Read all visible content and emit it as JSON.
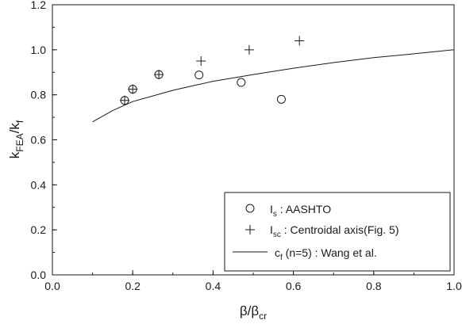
{
  "chart_data": {
    "type": "scatter",
    "x_axis": {
      "label_main": "β/β",
      "label_sub": "cr",
      "range": [
        0.0,
        1.0
      ],
      "ticks": [
        0.0,
        0.2,
        0.4,
        0.6,
        0.8,
        1.0
      ],
      "tick_labels": [
        "0.0",
        "0.2",
        "0.4",
        "0.6",
        "0.8",
        "1.0"
      ],
      "minor_step": 0.1
    },
    "y_axis": {
      "label_k1": "k",
      "label_sub1": "FEA",
      "label_slash_k": "/k",
      "label_sub2": "f",
      "range": [
        0.0,
        1.2
      ],
      "ticks": [
        0.0,
        0.2,
        0.4,
        0.6,
        0.8,
        1.0,
        1.2
      ],
      "tick_labels": [
        "0.0",
        "0.2",
        "0.4",
        "0.6",
        "0.8",
        "1.0",
        "1.2"
      ],
      "minor_step": 0.1
    },
    "grid": false,
    "legend_position": "bottom-right",
    "series": [
      {
        "name_main": "I",
        "name_sub": "s",
        "name_rest": " : AASHTO",
        "marker": "circle",
        "points": [
          {
            "x": 0.18,
            "y": 0.775
          },
          {
            "x": 0.2,
            "y": 0.825
          },
          {
            "x": 0.265,
            "y": 0.89
          },
          {
            "x": 0.365,
            "y": 0.888
          },
          {
            "x": 0.47,
            "y": 0.855
          },
          {
            "x": 0.57,
            "y": 0.78
          }
        ]
      },
      {
        "name_main": "I",
        "name_sub": "sc",
        "name_rest": " : Centroidal axis(Fig. 5)",
        "marker": "plus",
        "points": [
          {
            "x": 0.18,
            "y": 0.775
          },
          {
            "x": 0.2,
            "y": 0.825
          },
          {
            "x": 0.265,
            "y": 0.89
          },
          {
            "x": 0.37,
            "y": 0.95
          },
          {
            "x": 0.49,
            "y": 1.0
          },
          {
            "x": 0.615,
            "y": 1.04
          }
        ]
      },
      {
        "name_main": "c",
        "name_sub": "f",
        "name_rest": " (n=5) : Wang et al.",
        "marker": "line",
        "points": [
          {
            "x": 0.1,
            "y": 0.68
          },
          {
            "x": 0.15,
            "y": 0.73
          },
          {
            "x": 0.2,
            "y": 0.77
          },
          {
            "x": 0.25,
            "y": 0.795
          },
          {
            "x": 0.3,
            "y": 0.82
          },
          {
            "x": 0.35,
            "y": 0.84
          },
          {
            "x": 0.4,
            "y": 0.86
          },
          {
            "x": 0.5,
            "y": 0.89
          },
          {
            "x": 0.6,
            "y": 0.918
          },
          {
            "x": 0.7,
            "y": 0.943
          },
          {
            "x": 0.8,
            "y": 0.965
          },
          {
            "x": 0.9,
            "y": 0.982
          },
          {
            "x": 1.0,
            "y": 1.0
          }
        ]
      }
    ]
  }
}
